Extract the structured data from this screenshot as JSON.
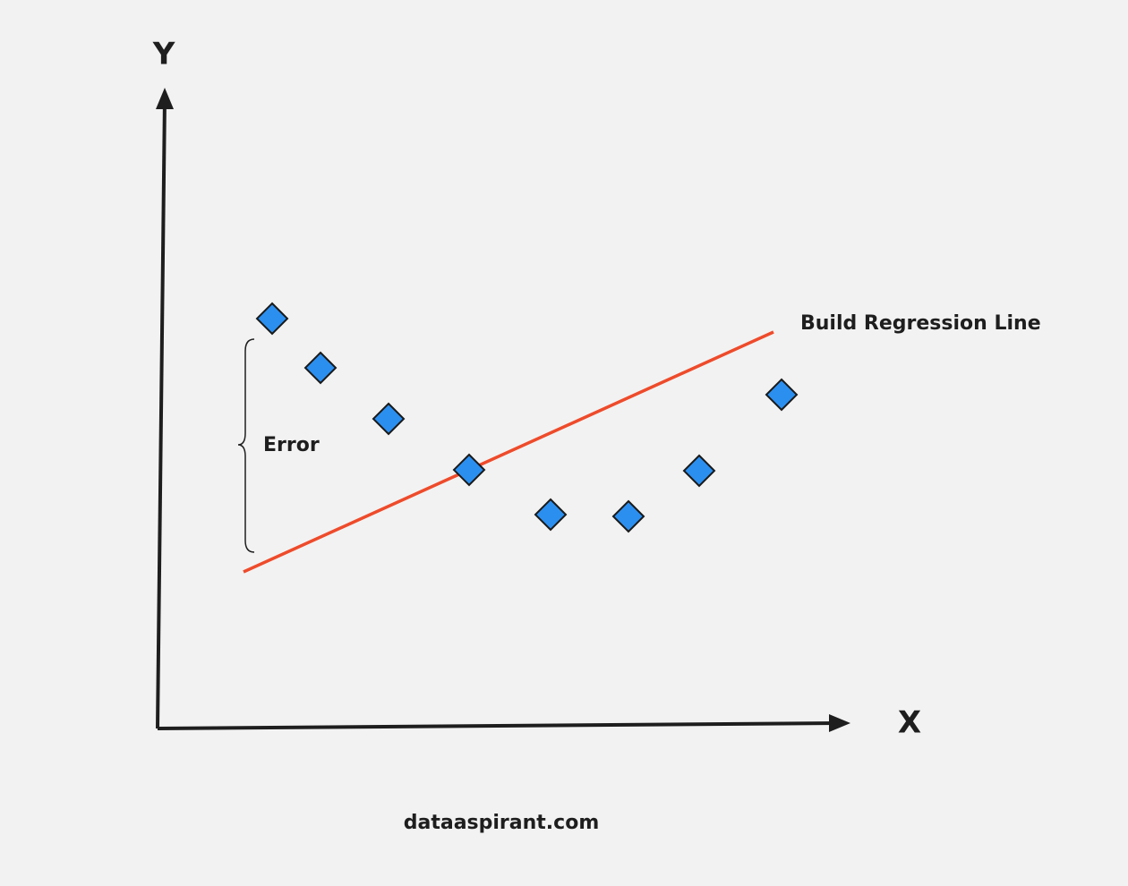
{
  "diagram": {
    "y_axis_label": "Y",
    "x_axis_label": "X",
    "error_label": "Error",
    "line_label": "Build Regression Line",
    "footer": "dataaspirant.com"
  }
}
